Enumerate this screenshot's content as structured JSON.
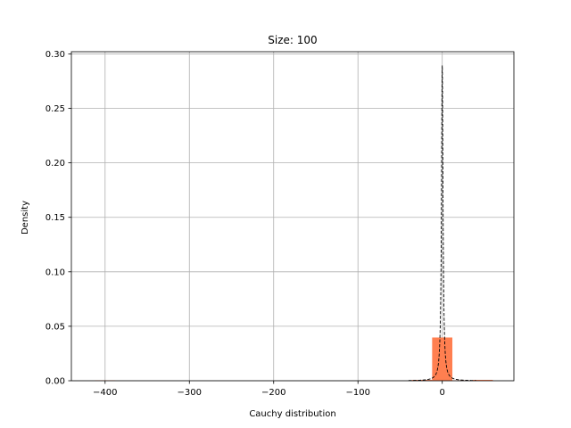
{
  "chart_data": {
    "type": "bar",
    "title": "Size: 100",
    "xlabel": "Cauchy distribution",
    "ylabel": "Density",
    "xlim": [
      -440,
      85
    ],
    "ylim": [
      0,
      0.302
    ],
    "grid": true,
    "xticks": [
      -400,
      -300,
      -200,
      -100,
      0
    ],
    "xtick_labels": [
      "−400",
      "−300",
      "−200",
      "−100",
      "0"
    ],
    "yticks": [
      0.0,
      0.05,
      0.1,
      0.15,
      0.2,
      0.25,
      0.3
    ],
    "ytick_labels": [
      "0.00",
      "0.05",
      "0.10",
      "0.15",
      "0.20",
      "0.25",
      "0.30"
    ],
    "histogram": {
      "color": "#ff7f50",
      "bins": [
        {
          "x0": -412,
          "x1": -388,
          "density": 0.0004
        },
        {
          "x0": -36,
          "x1": -12,
          "density": 0.0008
        },
        {
          "x0": -12,
          "x1": 12,
          "density": 0.0397
        },
        {
          "x0": 12,
          "x1": 36,
          "density": 0.0004
        },
        {
          "x0": 36,
          "x1": 60,
          "density": 0.0008
        }
      ]
    },
    "pdf_curve": {
      "style": "dashed",
      "color": "#000000",
      "location": 0,
      "scale": 1.1,
      "x_range": [
        -40,
        40
      ]
    }
  }
}
